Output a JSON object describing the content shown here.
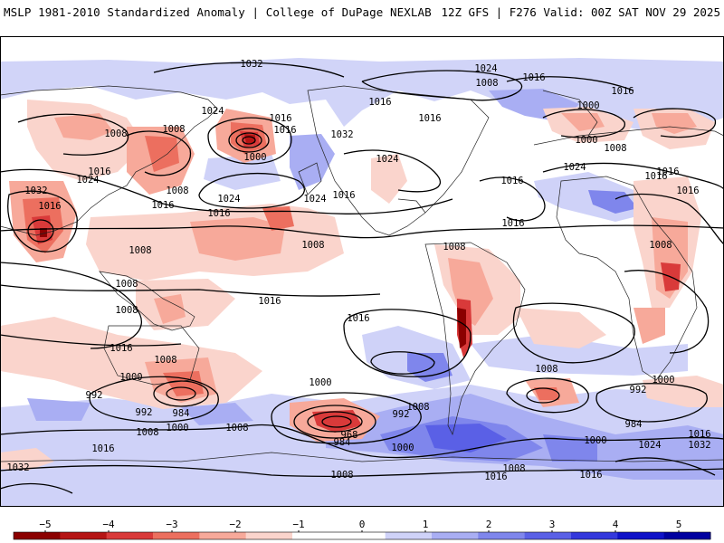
{
  "header": {
    "left_title": "MSLP 1981-2010 Standardized Anomaly | College of DuPage NEXLAB",
    "right_title": "12Z GFS | F276 Valid: 00Z SAT NOV 29 2025"
  },
  "map": {
    "projection": "cylindrical equidistant, Pacific-centered",
    "isobar_labels": [
      {
        "id": "l1032a",
        "text": "1032"
      },
      {
        "id": "l1024a",
        "text": "1024"
      },
      {
        "id": "l1008a",
        "text": "1008"
      },
      {
        "id": "l1016a",
        "text": "1016"
      },
      {
        "id": "l1016b",
        "text": "1016"
      },
      {
        "id": "l1016c",
        "text": "1016"
      },
      {
        "id": "l1000a",
        "text": "1000"
      },
      {
        "id": "l1008b",
        "text": "1008"
      },
      {
        "id": "l1008c",
        "text": "1008"
      },
      {
        "id": "l1016d",
        "text": "1016"
      },
      {
        "id": "l1016e",
        "text": "1016"
      },
      {
        "id": "l1024b",
        "text": "1024"
      },
      {
        "id": "l1032b",
        "text": "1032"
      },
      {
        "id": "l1016f",
        "text": "1016"
      },
      {
        "id": "l1024c",
        "text": "1024"
      },
      {
        "id": "l1016g",
        "text": "1016"
      },
      {
        "id": "l1024d",
        "text": "1024"
      },
      {
        "id": "l1000b",
        "text": "1000"
      },
      {
        "id": "l1008d",
        "text": "1008"
      },
      {
        "id": "l1016h",
        "text": "1016"
      },
      {
        "id": "l1032c",
        "text": "1032"
      },
      {
        "id": "l1016i",
        "text": "1016"
      },
      {
        "id": "l1024e",
        "text": "1024"
      },
      {
        "id": "l1016j",
        "text": "1016"
      },
      {
        "id": "l1024f",
        "text": "1024"
      },
      {
        "id": "l1016k",
        "text": "1016"
      },
      {
        "id": "l1008e",
        "text": "1008"
      },
      {
        "id": "l1016l",
        "text": "1016"
      },
      {
        "id": "l1000c",
        "text": "1000"
      },
      {
        "id": "l1016m",
        "text": "1016"
      },
      {
        "id": "l1008f",
        "text": "1008"
      },
      {
        "id": "l1016n",
        "text": "1016"
      },
      {
        "id": "l1008g",
        "text": "1008"
      },
      {
        "id": "l1008h",
        "text": "1008"
      },
      {
        "id": "l1024g",
        "text": "1024"
      },
      {
        "id": "l1016o",
        "text": "1016"
      },
      {
        "id": "l1008i",
        "text": "1008"
      },
      {
        "id": "l1016p",
        "text": "1016"
      },
      {
        "id": "l1008j",
        "text": "1008"
      },
      {
        "id": "l1016q",
        "text": "1016"
      },
      {
        "id": "l1016r",
        "text": "1016"
      },
      {
        "id": "l1008k",
        "text": "1008"
      },
      {
        "id": "l1016s",
        "text": "1016"
      },
      {
        "id": "l1000d",
        "text": "1000"
      },
      {
        "id": "l1008l",
        "text": "1008"
      },
      {
        "id": "l992a",
        "text": "992"
      },
      {
        "id": "l992b",
        "text": "992"
      },
      {
        "id": "l984a",
        "text": "984"
      },
      {
        "id": "l1000e",
        "text": "1000"
      },
      {
        "id": "l1008m",
        "text": "1008"
      },
      {
        "id": "l1016t",
        "text": "1016"
      },
      {
        "id": "l1008n",
        "text": "1008"
      },
      {
        "id": "l1032d",
        "text": "1032"
      },
      {
        "id": "l1000f",
        "text": "1000"
      },
      {
        "id": "l992c",
        "text": "992"
      },
      {
        "id": "l968a",
        "text": "968"
      },
      {
        "id": "l984b",
        "text": "984"
      },
      {
        "id": "l1000g",
        "text": "1000"
      },
      {
        "id": "l1008o",
        "text": "1008"
      },
      {
        "id": "l1016u",
        "text": "1016"
      },
      {
        "id": "l1008p",
        "text": "1008"
      },
      {
        "id": "l1008q",
        "text": "1008"
      },
      {
        "id": "l992d",
        "text": "992"
      },
      {
        "id": "l1000h",
        "text": "1000"
      },
      {
        "id": "l984c",
        "text": "984"
      },
      {
        "id": "l1000i",
        "text": "1000"
      },
      {
        "id": "l1024h",
        "text": "1024"
      },
      {
        "id": "l1016v",
        "text": "1016"
      },
      {
        "id": "l1032e",
        "text": "1032"
      },
      {
        "id": "l1008r",
        "text": "1008"
      },
      {
        "id": "l1016w",
        "text": "1016"
      }
    ]
  },
  "colorbar": {
    "ticks": [
      {
        "value": -5,
        "label": "−5"
      },
      {
        "value": -4,
        "label": "−4"
      },
      {
        "value": -3,
        "label": "−3"
      },
      {
        "value": -2,
        "label": "−2"
      },
      {
        "value": -1,
        "label": "−1"
      },
      {
        "value": 0,
        "label": "0"
      },
      {
        "value": 1,
        "label": "1"
      },
      {
        "value": 2,
        "label": "2"
      },
      {
        "value": 3,
        "label": "3"
      },
      {
        "value": 4,
        "label": "4"
      },
      {
        "value": 5,
        "label": "5"
      }
    ],
    "colors": [
      "#8b0000",
      "#b51414",
      "#d93a3a",
      "#ec6f5f",
      "#f7a99a",
      "#fad4cc",
      "#ffffff",
      "#ffffff",
      "#cfd2f8",
      "#a9aef3",
      "#7f86ec",
      "#5a60e6",
      "#3438dc",
      "#0f12c8",
      "#0000a0"
    ]
  }
}
